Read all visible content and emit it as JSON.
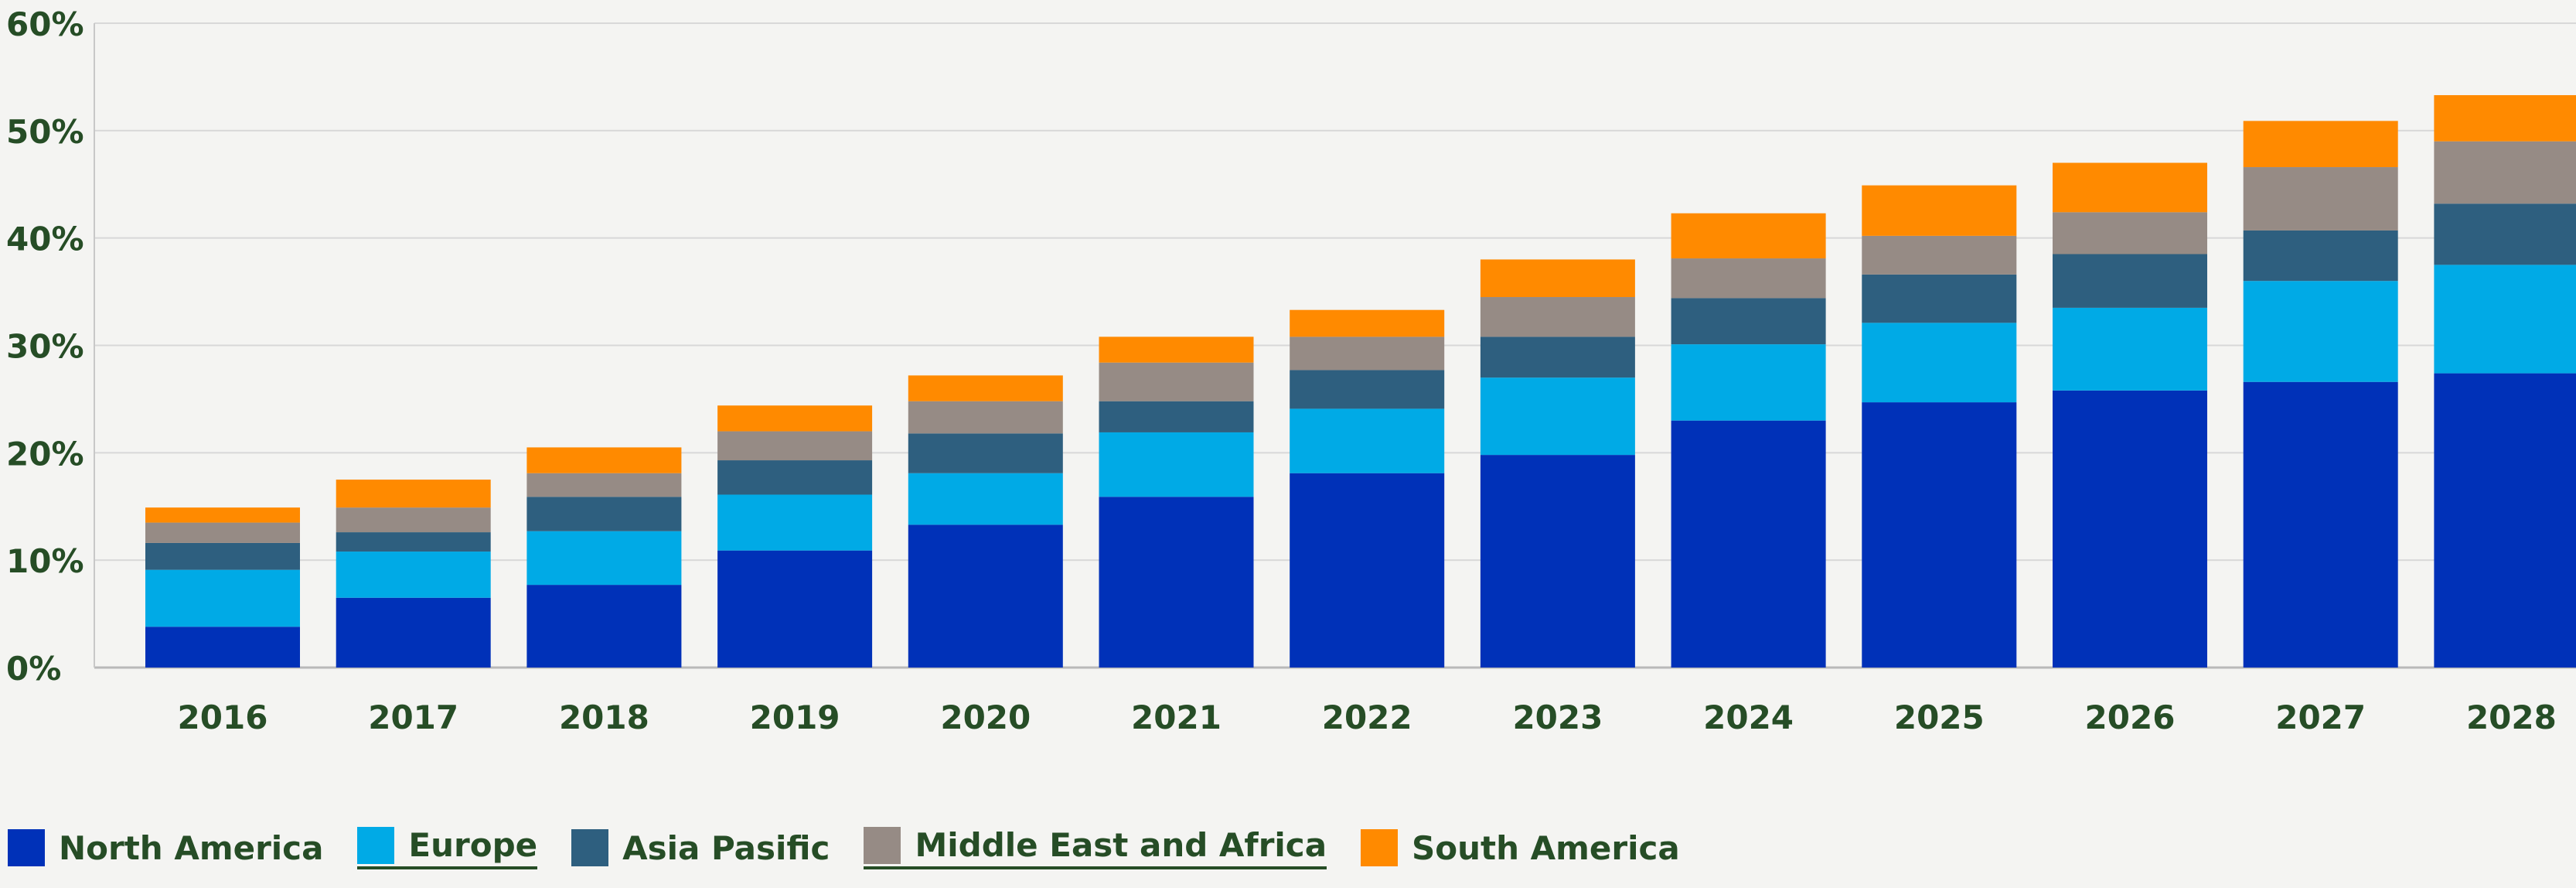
{
  "chart_data": {
    "type": "bar",
    "stacked": true,
    "categories": [
      "2016",
      "2017",
      "2018",
      "2019",
      "2020",
      "2021",
      "2022",
      "2023",
      "2024",
      "2025",
      "2026",
      "2027",
      "2028"
    ],
    "series": [
      {
        "name": "North America",
        "color": "#0031b8",
        "values": [
          3.8,
          6.5,
          7.7,
          10.9,
          13.3,
          15.9,
          18.1,
          19.8,
          23.0,
          24.7,
          25.8,
          26.6,
          27.4
        ]
      },
      {
        "name": "Europe",
        "color": "#00aae6",
        "values": [
          5.3,
          4.3,
          5.0,
          5.2,
          4.8,
          6.0,
          6.0,
          7.2,
          7.1,
          7.4,
          7.7,
          9.4,
          10.1
        ]
      },
      {
        "name": "Asia Pasific",
        "color": "#2e5f7f",
        "values": [
          2.5,
          1.8,
          3.2,
          3.2,
          3.7,
          2.9,
          3.6,
          3.8,
          4.3,
          4.5,
          5.0,
          4.7,
          5.7
        ]
      },
      {
        "name": "Middle East and Africa",
        "color": "#968b85",
        "values": [
          1.9,
          2.3,
          2.2,
          2.7,
          3.0,
          3.6,
          3.1,
          3.7,
          3.7,
          3.6,
          3.9,
          5.9,
          5.8
        ]
      },
      {
        "name": "South America",
        "color": "#ff8a00",
        "values": [
          1.4,
          2.6,
          2.4,
          2.4,
          2.4,
          2.4,
          2.5,
          3.5,
          4.2,
          4.7,
          4.6,
          4.3,
          4.3
        ]
      }
    ],
    "ylim": [
      0,
      60
    ],
    "yticks": [
      "0%",
      "10%",
      "20%",
      "30%",
      "40%",
      "50%",
      "60%"
    ],
    "grid": true,
    "legend_position": "bottom-left"
  }
}
